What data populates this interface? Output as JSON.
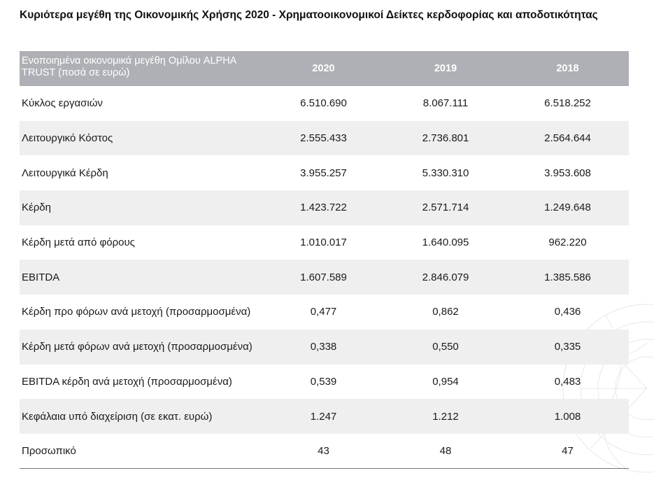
{
  "title": "Κυριότερα μεγέθη της Οικονομικής Χρήσης 2020 - Χρηματοοικονομικοί Δείκτες κερδοφορίας και αποδοτικότητας",
  "table": {
    "header_label": "Ενοποιημένα οικονομικά μεγέθη Ομίλου ALPHA TRUST (ποσά σε ευρώ)",
    "years": [
      "2020",
      "2019",
      "2018"
    ],
    "rows": [
      {
        "label": "Κύκλος εργασιών",
        "values": [
          "6.510.690",
          "8.067.111",
          "6.518.252"
        ]
      },
      {
        "label": "Λειτουργικό Κόστος",
        "values": [
          "2.555.433",
          "2.736.801",
          "2.564.644"
        ]
      },
      {
        "label": "Λειτουργικά Κέρδη",
        "values": [
          "3.955.257",
          "5.330.310",
          "3.953.608"
        ]
      },
      {
        "label": "Κέρδη",
        "values": [
          "1.423.722",
          "2.571.714",
          "1.249.648"
        ]
      },
      {
        "label": "Κέρδη μετά από φόρους",
        "values": [
          "1.010.017",
          "1.640.095",
          "962.220"
        ]
      },
      {
        "label": "EBITDA",
        "values": [
          "1.607.589",
          "2.846.079",
          "1.385.586"
        ]
      },
      {
        "label": "Κέρδη προ φόρων ανά μετοχή (προσαρμοσμένα)",
        "values": [
          "0,477",
          "0,862",
          "0,436"
        ]
      },
      {
        "label": "Κέρδη μετά φόρων ανά μετοχή (προσαρμοσμένα)",
        "values": [
          "0,338",
          "0,550",
          "0,335"
        ]
      },
      {
        "label": "EBITDA κέρδη ανά μετοχή (προσαρμοσμένα)",
        "values": [
          "0,539",
          "0,954",
          "0,483"
        ]
      },
      {
        "label": "Κεφάλαια υπό διαχείριση (σε εκατ. ευρώ)",
        "values": [
          "1.247",
          "1.212",
          "1.008"
        ]
      },
      {
        "label": "Προσωπικό",
        "values": [
          "43",
          "48",
          "47"
        ]
      }
    ]
  },
  "colors": {
    "header_bg": "#aeb0b5",
    "row_alt_bg": "#efefef",
    "header_text": "#ffffff"
  }
}
